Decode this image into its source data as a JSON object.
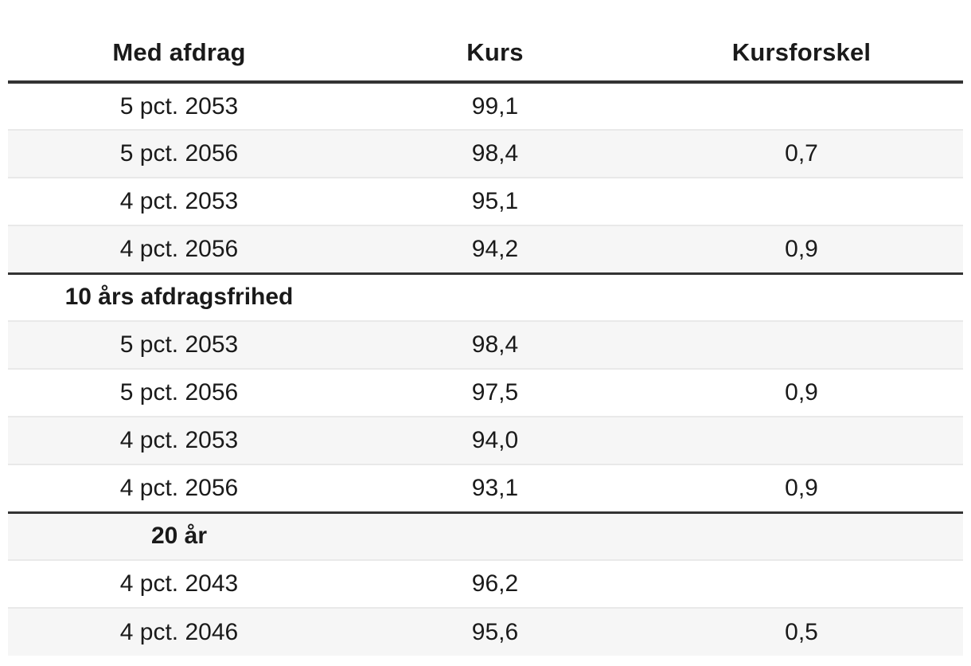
{
  "colors": {
    "background": "#ffffff",
    "stripe_row": "#f6f6f6",
    "row_separator": "#e9e9e9",
    "heavy_rule": "#333333",
    "text": "#1a1a1a"
  },
  "table": {
    "columns": [
      {
        "label": "Med afdrag"
      },
      {
        "label": "Kurs"
      },
      {
        "label": "Kursforskel"
      }
    ],
    "rows": [
      {
        "type": "data",
        "cells": [
          "5 pct. 2053",
          "99,1",
          ""
        ]
      },
      {
        "type": "data",
        "cells": [
          "5 pct. 2056",
          "98,4",
          "0,7"
        ]
      },
      {
        "type": "data",
        "cells": [
          "4 pct. 2053",
          "95,1",
          ""
        ]
      },
      {
        "type": "data",
        "cells": [
          "4 pct. 2056",
          "94,2",
          "0,9"
        ]
      },
      {
        "type": "section",
        "cells": [
          "10 års afdragsfrihed",
          "",
          ""
        ]
      },
      {
        "type": "data",
        "cells": [
          "5 pct. 2053",
          "98,4",
          ""
        ]
      },
      {
        "type": "data",
        "cells": [
          "5 pct. 2056",
          "97,5",
          "0,9"
        ]
      },
      {
        "type": "data",
        "cells": [
          "4 pct. 2053",
          "94,0",
          ""
        ]
      },
      {
        "type": "data",
        "cells": [
          "4 pct. 2056",
          "93,1",
          "0,9"
        ]
      },
      {
        "type": "section",
        "cells": [
          "20 år",
          "",
          ""
        ]
      },
      {
        "type": "data",
        "cells": [
          "4 pct. 2043",
          "96,2",
          ""
        ]
      },
      {
        "type": "data",
        "cells": [
          "4 pct. 2046",
          "95,6",
          "0,5"
        ]
      }
    ]
  },
  "chart_data": {
    "type": "table",
    "title": "",
    "columns": [
      "Med afdrag",
      "Kurs",
      "Kursforskel"
    ],
    "sections": [
      {
        "name": "Med afdrag",
        "rows": [
          {
            "bond": "5 pct. 2053",
            "kurs": 99.1,
            "kursforskel": null
          },
          {
            "bond": "5 pct. 2056",
            "kurs": 98.4,
            "kursforskel": 0.7
          },
          {
            "bond": "4 pct. 2053",
            "kurs": 95.1,
            "kursforskel": null
          },
          {
            "bond": "4 pct. 2056",
            "kurs": 94.2,
            "kursforskel": 0.9
          }
        ]
      },
      {
        "name": "10 års afdragsfrihed",
        "rows": [
          {
            "bond": "5 pct. 2053",
            "kurs": 98.4,
            "kursforskel": null
          },
          {
            "bond": "5 pct. 2056",
            "kurs": 97.5,
            "kursforskel": 0.9
          },
          {
            "bond": "4 pct. 2053",
            "kurs": 94.0,
            "kursforskel": null
          },
          {
            "bond": "4 pct. 2056",
            "kurs": 93.1,
            "kursforskel": 0.9
          }
        ]
      },
      {
        "name": "20 år",
        "rows": [
          {
            "bond": "4 pct. 2043",
            "kurs": 96.2,
            "kursforskel": null
          },
          {
            "bond": "4 pct. 2046",
            "kurs": 95.6,
            "kursforskel": 0.5
          }
        ]
      }
    ],
    "number_format": "decimal comma (da-DK)",
    "layout": {
      "striped_rows": true,
      "all_columns_centered": true
    }
  }
}
